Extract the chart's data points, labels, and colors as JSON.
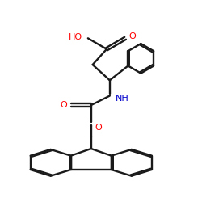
{
  "bg_color": "#ffffff",
  "bond_color": "#1a1a1a",
  "o_color": "#ff0000",
  "n_color": "#0000cc",
  "lw": 1.7,
  "dbo": 0.008,
  "figsize": [
    2.5,
    2.5
  ],
  "dpi": 100,
  "xlim": [
    0.0,
    1.0
  ],
  "ylim": [
    0.0,
    1.0
  ]
}
